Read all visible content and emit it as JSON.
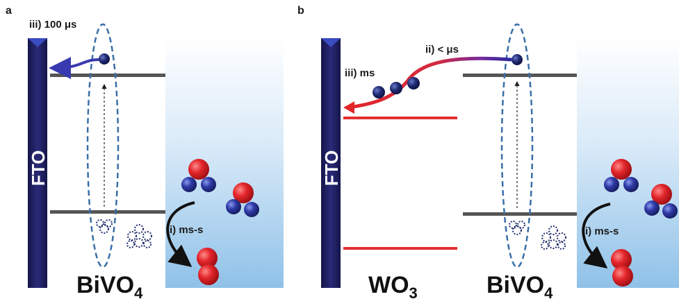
{
  "colors": {
    "fto": "#1f1f5e",
    "electron": "#1d2a6b",
    "oxygen_red": "#e0202a",
    "hole_blue": "#2c3aa0",
    "wo3_level": "#e23030",
    "level_gray": "#555555",
    "ellipse": "#3a6ea8",
    "arrow_blue": "#3a3ab0"
  },
  "panel_a": {
    "letter": "a",
    "electrode": "FTO",
    "transfer_label": "iii) 100 μs",
    "reaction_label": "i) ms-s",
    "material": {
      "base": "BiVO",
      "sub": "4"
    }
  },
  "panel_b": {
    "letter": "b",
    "electrode": "FTO",
    "fast_transfer_label": "ii) < μs",
    "slow_transfer_label": "iii) ms",
    "reaction_label": "i) ms-s",
    "left_material": {
      "base": "WO",
      "sub": "3"
    },
    "right_material": {
      "base": "BiVO",
      "sub": "4"
    }
  }
}
